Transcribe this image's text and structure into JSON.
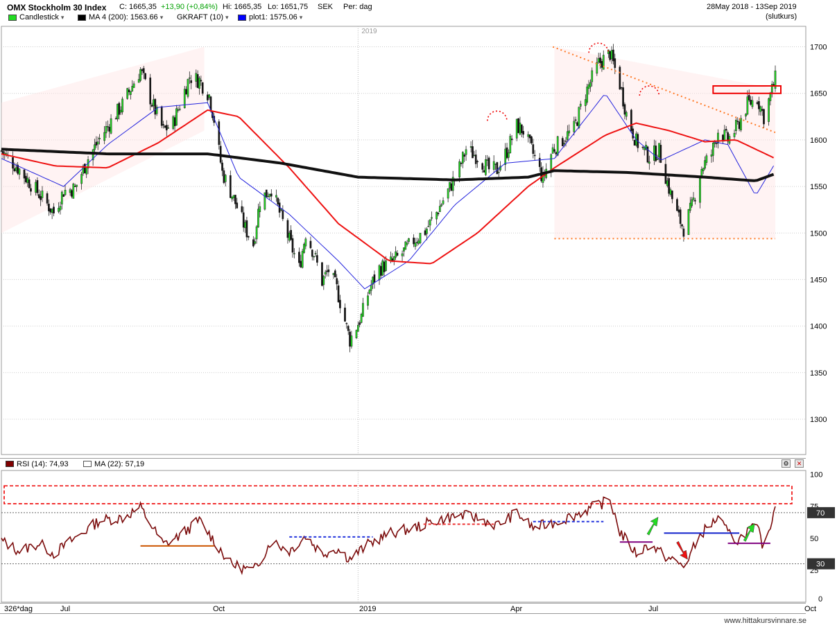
{
  "header": {
    "title": "OMX Stockholm 30 Index",
    "close": "C: 1665,35",
    "change": "+13,90 (+0,84%)",
    "high": "Hi: 1665,35",
    "low": "Lo: 1651,75",
    "currency": "SEK",
    "period": "Per: dag",
    "range": "28May 2018 - 13Sep 2019",
    "price_type": "(slutkurs)",
    "change_color": "#00a000"
  },
  "legend": [
    {
      "label": "Candlestick",
      "color": "#22dd22"
    },
    {
      "label": "MA 4 (200): 1563.66",
      "color": "#000000"
    },
    {
      "label": "GKRAFT (10)",
      "color": ""
    },
    {
      "label": "plot1: 1575.06",
      "color": "#0000ff"
    }
  ],
  "rsi_header": {
    "rsi": "RSI (14): 74,93",
    "ma": "MA (22): 57,19",
    "rsi_color": "#800000"
  },
  "year_label": "2019",
  "watermark": "www.hittakursvinnare.se",
  "x_axis": {
    "first": "326*dag",
    "labels": [
      "Jul",
      "Oct",
      "2019",
      "Apr",
      "Jul",
      "Oct"
    ]
  },
  "chart_data": [
    {
      "type": "candlestick",
      "title": "OMX Stockholm 30 Index",
      "yticks": [
        1300,
        1350,
        1400,
        1450,
        1500,
        1550,
        1600,
        1650,
        1700
      ],
      "ylim": [
        1262,
        1722
      ],
      "x_range": [
        "2018-05-28",
        "2019-09-13"
      ],
      "grid": true,
      "legend_position": "top-left",
      "close_path": [
        [
          "2018-05-28",
          1588
        ],
        [
          "2018-06-08",
          1568
        ],
        [
          "2018-06-20",
          1542
        ],
        [
          "2018-06-29",
          1522
        ],
        [
          "2018-07-05",
          1545
        ],
        [
          "2018-07-12",
          1548
        ],
        [
          "2018-07-20",
          1580
        ],
        [
          "2018-07-27",
          1601
        ],
        [
          "2018-08-03",
          1620
        ],
        [
          "2018-08-10",
          1638
        ],
        [
          "2018-08-17",
          1662
        ],
        [
          "2018-08-21",
          1675
        ],
        [
          "2018-08-28",
          1640
        ],
        [
          "2018-09-04",
          1610
        ],
        [
          "2018-09-10",
          1618
        ],
        [
          "2018-09-14",
          1638
        ],
        [
          "2018-09-20",
          1668
        ],
        [
          "2018-09-26",
          1664
        ],
        [
          "2018-10-02",
          1648
        ],
        [
          "2018-10-05",
          1622
        ],
        [
          "2018-10-10",
          1565
        ],
        [
          "2018-10-15",
          1545
        ],
        [
          "2018-10-19",
          1528
        ],
        [
          "2018-10-24",
          1505
        ],
        [
          "2018-10-29",
          1488
        ],
        [
          "2018-11-02",
          1535
        ],
        [
          "2018-11-09",
          1548
        ],
        [
          "2018-11-14",
          1522
        ],
        [
          "2018-11-20",
          1492
        ],
        [
          "2018-11-26",
          1462
        ],
        [
          "2018-11-30",
          1500
        ],
        [
          "2018-12-05",
          1478
        ],
        [
          "2018-12-10",
          1448
        ],
        [
          "2018-12-14",
          1460
        ],
        [
          "2018-12-19",
          1440
        ],
        [
          "2018-12-27",
          1385
        ],
        [
          "2019-01-03",
          1410
        ],
        [
          "2019-01-08",
          1440
        ],
        [
          "2019-01-14",
          1462
        ],
        [
          "2019-01-21",
          1468
        ],
        [
          "2019-01-28",
          1478
        ],
        [
          "2019-02-04",
          1492
        ],
        [
          "2019-02-11",
          1502
        ],
        [
          "2019-02-18",
          1522
        ],
        [
          "2019-02-25",
          1545
        ],
        [
          "2019-03-04",
          1570
        ],
        [
          "2019-03-08",
          1590
        ],
        [
          "2019-03-15",
          1582
        ],
        [
          "2019-03-22",
          1568
        ],
        [
          "2019-03-27",
          1568
        ],
        [
          "2019-04-02",
          1588
        ],
        [
          "2019-04-08",
          1615
        ],
        [
          "2019-04-12",
          1610
        ],
        [
          "2019-04-18",
          1585
        ],
        [
          "2019-04-24",
          1558
        ],
        [
          "2019-04-30",
          1590
        ],
        [
          "2019-05-07",
          1602
        ],
        [
          "2019-05-13",
          1612
        ],
        [
          "2019-05-20",
          1650
        ],
        [
          "2019-05-28",
          1682
        ],
        [
          "2019-06-04",
          1693
        ],
        [
          "2019-06-10",
          1660
        ],
        [
          "2019-06-14",
          1628
        ],
        [
          "2019-06-20",
          1598
        ],
        [
          "2019-06-28",
          1582
        ],
        [
          "2019-07-04",
          1588
        ],
        [
          "2019-07-10",
          1548
        ],
        [
          "2019-07-15",
          1520
        ],
        [
          "2019-07-19",
          1505
        ],
        [
          "2019-07-24",
          1528
        ],
        [
          "2019-07-30",
          1570
        ],
        [
          "2019-08-05",
          1585
        ],
        [
          "2019-08-09",
          1610
        ],
        [
          "2019-08-15",
          1600
        ],
        [
          "2019-08-21",
          1615
        ],
        [
          "2019-08-27",
          1638
        ],
        [
          "2019-09-02",
          1645
        ],
        [
          "2019-09-06",
          1625
        ],
        [
          "2019-09-13",
          1665.35
        ]
      ],
      "ma_200": [
        [
          "2018-05-28",
          1590
        ],
        [
          "2018-08-01",
          1585
        ],
        [
          "2018-10-01",
          1585
        ],
        [
          "2018-11-15",
          1575
        ],
        [
          "2019-01-01",
          1560
        ],
        [
          "2019-03-01",
          1557
        ],
        [
          "2019-04-15",
          1560
        ],
        [
          "2019-05-01",
          1567
        ],
        [
          "2019-06-15",
          1565
        ],
        [
          "2019-08-01",
          1560
        ],
        [
          "2019-09-01",
          1556
        ],
        [
          "2019-09-13",
          1563.66
        ]
      ],
      "ma_red": [
        [
          "2018-05-28",
          1585
        ],
        [
          "2018-06-30",
          1572
        ],
        [
          "2018-08-01",
          1570
        ],
        [
          "2018-09-01",
          1597
        ],
        [
          "2018-10-01",
          1632
        ],
        [
          "2018-10-20",
          1625
        ],
        [
          "2018-11-20",
          1570
        ],
        [
          "2018-12-20",
          1510
        ],
        [
          "2019-01-20",
          1470
        ],
        [
          "2019-02-15",
          1467
        ],
        [
          "2019-03-15",
          1500
        ],
        [
          "2019-04-15",
          1550
        ],
        [
          "2019-05-01",
          1570
        ],
        [
          "2019-06-01",
          1605
        ],
        [
          "2019-06-20",
          1618
        ],
        [
          "2019-07-10",
          1610
        ],
        [
          "2019-08-01",
          1598
        ],
        [
          "2019-08-20",
          1600
        ],
        [
          "2019-09-13",
          1580
        ]
      ],
      "plot1": [
        [
          "2018-05-28",
          1580
        ],
        [
          "2018-07-05",
          1550
        ],
        [
          "2018-08-01",
          1595
        ],
        [
          "2018-09-01",
          1635
        ],
        [
          "2018-10-01",
          1640
        ],
        [
          "2018-10-20",
          1560
        ],
        [
          "2018-11-20",
          1520
        ],
        [
          "2018-12-20",
          1470
        ],
        [
          "2019-01-05",
          1440
        ],
        [
          "2019-02-01",
          1470
        ],
        [
          "2019-03-01",
          1530
        ],
        [
          "2019-04-01",
          1575
        ],
        [
          "2019-05-01",
          1580
        ],
        [
          "2019-06-01",
          1650
        ],
        [
          "2019-06-20",
          1600
        ],
        [
          "2019-07-05",
          1578
        ],
        [
          "2019-08-01",
          1600
        ],
        [
          "2019-08-15",
          1595
        ],
        [
          "2019-09-01",
          1540
        ],
        [
          "2019-09-13",
          1575.06
        ]
      ],
      "annotations": {
        "resistance_box": {
          "from": "2019-08-06",
          "to": "2019-09-13",
          "low": 1650,
          "high": 1658
        },
        "support_line": {
          "from": "2019-05-01",
          "to": "2019-09-13",
          "value": 1494
        },
        "downtrend": {
          "from": "2019-04-30",
          "to": "2019-09-13",
          "start": 1700,
          "end": 1608
        }
      }
    },
    {
      "type": "line",
      "title": "RSI (14)",
      "yticks": [
        25,
        50,
        75,
        100
      ],
      "ylim": [
        0,
        103
      ],
      "levels": [
        30,
        70
      ],
      "last_value": 74.93,
      "series": [
        {
          "name": "RSI (14)",
          "values_path": [
            [
              "2018-05-28",
              48
            ],
            [
              "2018-06-08",
              40
            ],
            [
              "2018-06-20",
              46
            ],
            [
              "2018-06-29",
              38
            ],
            [
              "2018-07-12",
              50
            ],
            [
              "2018-07-27",
              64
            ],
            [
              "2018-08-10",
              66
            ],
            [
              "2018-08-21",
              74
            ],
            [
              "2018-09-04",
              45
            ],
            [
              "2018-09-14",
              52
            ],
            [
              "2018-09-26",
              64
            ],
            [
              "2018-10-05",
              48
            ],
            [
              "2018-10-15",
              30
            ],
            [
              "2018-10-29",
              24
            ],
            [
              "2018-11-09",
              48
            ],
            [
              "2018-11-20",
              40
            ],
            [
              "2018-11-30",
              52
            ],
            [
              "2018-12-10",
              38
            ],
            [
              "2018-12-19",
              42
            ],
            [
              "2018-12-27",
              34
            ],
            [
              "2019-01-08",
              46
            ],
            [
              "2019-01-21",
              54
            ],
            [
              "2019-02-04",
              58
            ],
            [
              "2019-02-18",
              64
            ],
            [
              "2019-03-04",
              68
            ],
            [
              "2019-03-15",
              66
            ],
            [
              "2019-03-27",
              60
            ],
            [
              "2019-04-08",
              70
            ],
            [
              "2019-04-18",
              58
            ],
            [
              "2019-04-30",
              62
            ],
            [
              "2019-05-13",
              68
            ],
            [
              "2019-05-28",
              76
            ],
            [
              "2019-06-04",
              80
            ],
            [
              "2019-06-10",
              55
            ],
            [
              "2019-06-20",
              38
            ],
            [
              "2019-06-28",
              45
            ],
            [
              "2019-07-10",
              34
            ],
            [
              "2019-07-19",
              28
            ],
            [
              "2019-07-30",
              54
            ],
            [
              "2019-08-09",
              66
            ],
            [
              "2019-08-15",
              54
            ],
            [
              "2019-08-21",
              48
            ],
            [
              "2019-08-27",
              56
            ],
            [
              "2019-09-02",
              58
            ],
            [
              "2019-09-06",
              42
            ],
            [
              "2019-09-13",
              74.93
            ]
          ]
        }
      ]
    }
  ]
}
